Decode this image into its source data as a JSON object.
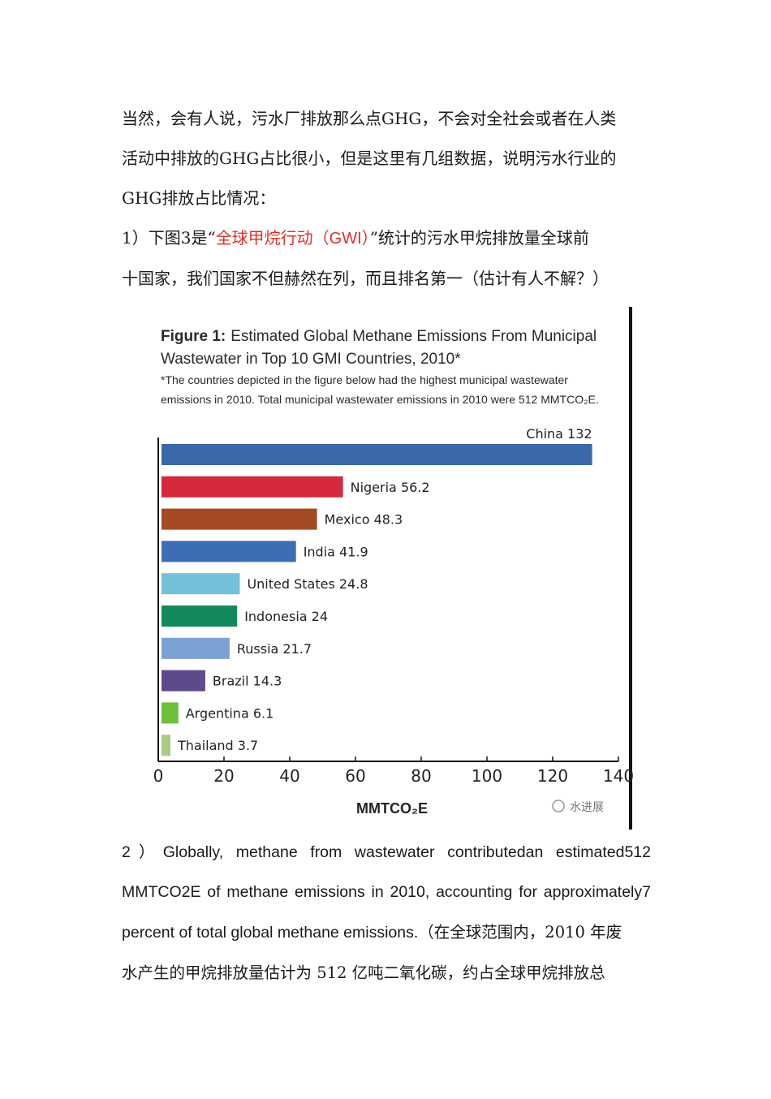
{
  "intro": {
    "lines": [
      "当然，会有人说，污水厂排放那么点GHG，不会对全社会或者在人类",
      "活动中排放的GHG占比很小，但是这里有几组数据，说明污水行业的",
      "GHG排放占比情况："
    ]
  },
  "point1": {
    "prefix": "1）下图3是“",
    "highlight": "全球甲烷行动（GWI）",
    "suffix": "”统计的污水甲烷排放量全球前",
    "line2": "十国家，我们国家不但赫然在列，而且排名第一（估计有人不解？）"
  },
  "figure": {
    "title_bold": "Figure 1:",
    "title_rest": "Estimated Global Methane Emissions From Municipal",
    "title_line2": "Wastewater in Top 10 GMI Countries, 2010*",
    "note_line1": "*The countries depicted in the figure below had the highest municipal wastewater",
    "note_line2": "emissions in 2010. Total municipal wastewater emissions in 2010 were 512 MMTCO₂E.",
    "watermark": "水进展"
  },
  "chart_data": {
    "type": "bar",
    "orientation": "horizontal",
    "title": "Figure 1: Estimated Global Methane Emissions From Municipal Wastewater in Top 10 GMI Countries, 2010*",
    "xlabel": "MMTCO₂E",
    "ylabel": "",
    "xlim": [
      0,
      140
    ],
    "xticks": [
      "0",
      "20",
      "40",
      "60",
      "80",
      "100",
      "120",
      "140"
    ],
    "grid": false,
    "categories": [
      "China",
      "Nigeria",
      "Mexico",
      "India",
      "United States",
      "Indonesia",
      "Russia",
      "Brazil",
      "Argentina",
      "Thailand"
    ],
    "values": [
      132,
      56.2,
      48.3,
      41.9,
      24.8,
      24,
      21.7,
      14.3,
      6.1,
      3.7
    ],
    "labels": [
      "China 132",
      "Nigeria 56.2",
      "Mexico 48.3",
      "India 41.9",
      "United States 24.8",
      "Indonesia 24",
      "Russia 21.7",
      "Brazil 14.3",
      "Argentina 6.1",
      "Thailand 3.7"
    ],
    "colors": [
      "#3a68a8",
      "#d42a3c",
      "#a44a22",
      "#3d6eb4",
      "#74c0d8",
      "#138a5c",
      "#7aa0d4",
      "#5e4a8a",
      "#6cbf3a",
      "#a8cc82"
    ]
  },
  "point2": {
    "line1": "2）Globally, methane from wastewater contributedan estimated512",
    "line2": "MMTCO2E of methane emissions in 2010, accounting for approximately7",
    "line3_en": "percent of total global methane emissions.",
    "line3_zh": "（在全球范围内，2010 年废",
    "line4": "水产生的甲烷排放量估计为 512 亿吨二氧化碳，约占全球甲烷排放总"
  }
}
